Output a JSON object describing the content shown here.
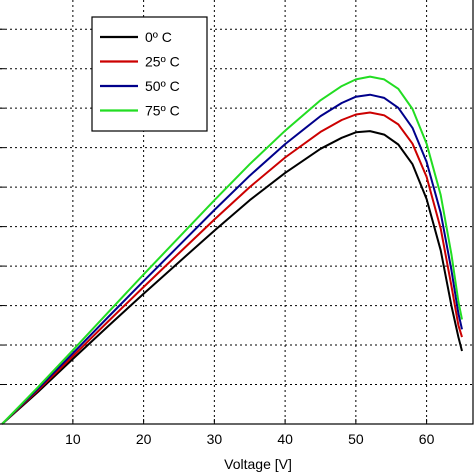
{
  "chart_data": {
    "type": "line",
    "xlabel": "Voltage [V]",
    "ylabel": "",
    "title": "",
    "xlim": [
      0,
      65
    ],
    "ylim": [
      0,
      100
    ],
    "xticks": [
      10,
      20,
      30,
      40,
      50,
      60
    ],
    "xtick_labels": [
      "10",
      "20",
      "30",
      "40",
      "50",
      "60"
    ],
    "grid": true,
    "legend_position": "top-left",
    "series": [
      {
        "name": "0º C",
        "color": "#000000",
        "x": [
          0,
          5,
          10,
          15,
          20,
          25,
          30,
          35,
          40,
          45,
          48,
          50,
          52,
          54,
          56,
          58,
          60,
          62,
          63.5,
          64.5,
          65
        ],
        "y": [
          0,
          8.0,
          16.5,
          24.8,
          33.0,
          41.0,
          49.0,
          56.7,
          63.6,
          69.7,
          72.5,
          73.9,
          74.2,
          73.3,
          70.8,
          65.8,
          57.0,
          44.0,
          30.0,
          22.0,
          18.5
        ]
      },
      {
        "name": "25º C",
        "color": "#cc0000",
        "x": [
          0,
          5,
          10,
          15,
          20,
          25,
          30,
          35,
          40,
          45,
          48,
          50,
          52,
          54,
          56,
          58,
          60,
          62,
          63.5,
          64.5,
          65
        ],
        "y": [
          0,
          8.4,
          17.2,
          26.0,
          34.7,
          43.3,
          51.8,
          60.0,
          67.5,
          74.0,
          77.0,
          78.4,
          78.9,
          78.2,
          75.9,
          71.0,
          62.6,
          49.5,
          35.0,
          25.0,
          22.0
        ]
      },
      {
        "name": "50º C",
        "color": "#00008b",
        "x": [
          0,
          5,
          10,
          15,
          20,
          25,
          30,
          35,
          40,
          45,
          48,
          50,
          52,
          54,
          56,
          58,
          60,
          62,
          63.5,
          64.5,
          65
        ],
        "y": [
          0,
          8.8,
          17.9,
          27.1,
          36.2,
          45.2,
          54.2,
          62.9,
          70.9,
          78.0,
          81.3,
          82.9,
          83.4,
          82.6,
          80.1,
          75.0,
          66.4,
          53.5,
          39.0,
          28.0,
          24.0
        ]
      },
      {
        "name": "75º C",
        "color": "#22dd22",
        "x": [
          0,
          5,
          10,
          15,
          20,
          25,
          30,
          35,
          40,
          45,
          48,
          50,
          52,
          54,
          56,
          58,
          60,
          62,
          63.5,
          64.5,
          65
        ],
        "y": [
          0,
          9.2,
          18.7,
          28.3,
          37.9,
          47.3,
          56.7,
          65.8,
          74.3,
          82.0,
          85.6,
          87.3,
          88.0,
          87.3,
          84.9,
          79.8,
          71.0,
          58.0,
          43.0,
          31.0,
          26.5
        ]
      }
    ]
  }
}
